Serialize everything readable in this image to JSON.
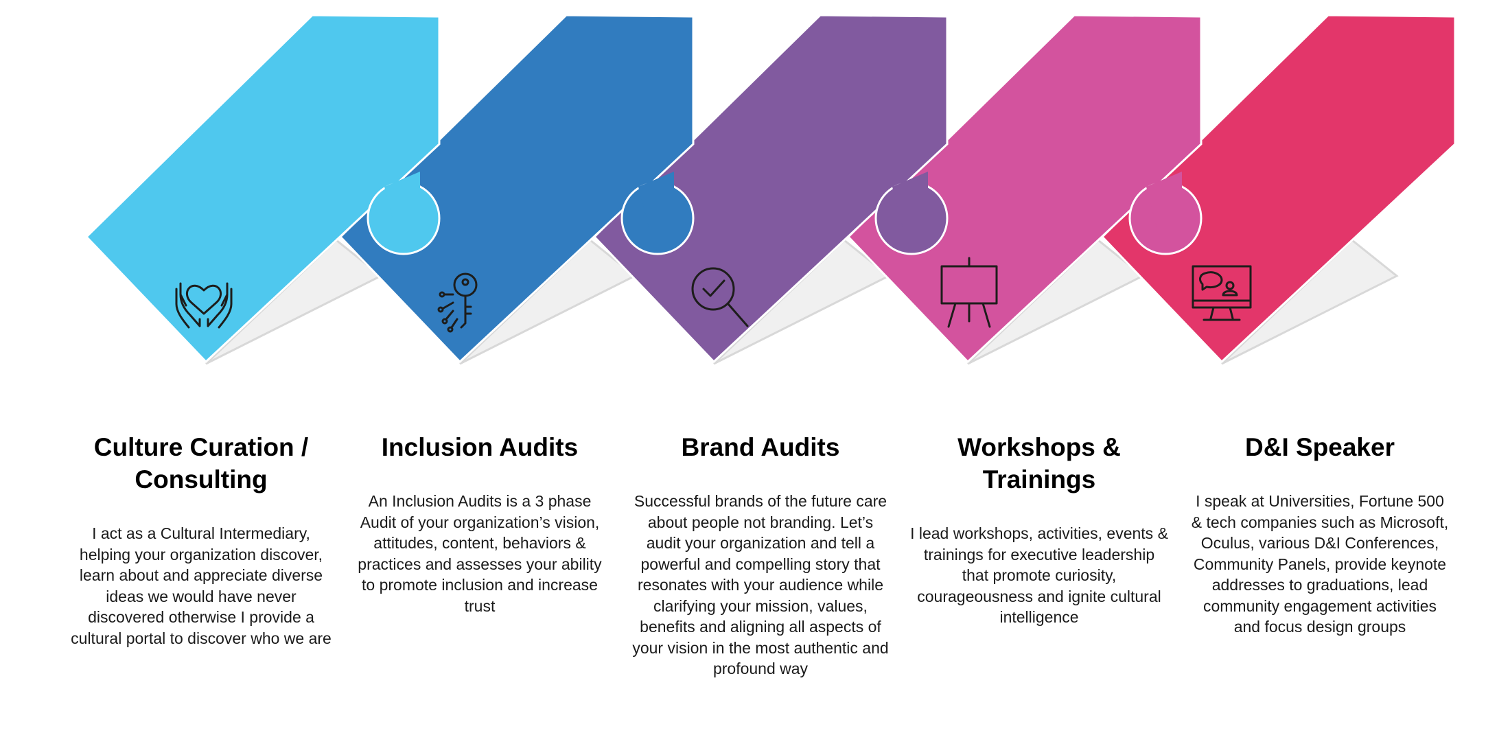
{
  "colors": {
    "light_blue": "#4fc8ee",
    "blue": "#317cbf",
    "purple": "#815a9f",
    "pink": "#d3539e",
    "red": "#e3366a",
    "shadow": "#f0f0f0"
  },
  "services": [
    {
      "title": "Culture Curation / Consulting",
      "description": "I act as a Cultural Intermediary, helping your organization discover, learn about and appreciate diverse ideas we would have never discovered otherwise I provide a cultural portal to discover who we are",
      "icon": "hands-heart-icon",
      "color": "#4fc8ee"
    },
    {
      "title": "Inclusion Audits",
      "description": "An Inclusion Audits is a 3 phase Audit of your organization’s vision, attitudes, content, behaviors & practices and assesses your ability to promote inclusion and increase trust",
      "icon": "key-icon",
      "color": "#317cbf"
    },
    {
      "title": "Brand Audits",
      "description": "Successful brands of the future care about people not branding. Let’s audit your organization and tell a powerful and compelling story that resonates with your audience while clarifying your mission, values, benefits and aligning all aspects of your vision in the most authentic and profound way",
      "icon": "magnifier-check-icon",
      "color": "#815a9f"
    },
    {
      "title": "Workshops & Trainings",
      "description": "I lead workshops, activities, events & trainings for executive leadership that promote curiosity, courageousness and ignite cultural intelligence",
      "icon": "presentation-board-icon",
      "color": "#d3539e"
    },
    {
      "title": "D&I Speaker",
      "description": "I speak at Universities, Fortune 500 & tech companies such as Microsoft, Oculus, various D&I Conferences, Community Panels, provide keynote addresses to graduations, lead community engagement activities and focus design groups",
      "icon": "video-call-monitor-icon",
      "color": "#e3366a"
    }
  ]
}
